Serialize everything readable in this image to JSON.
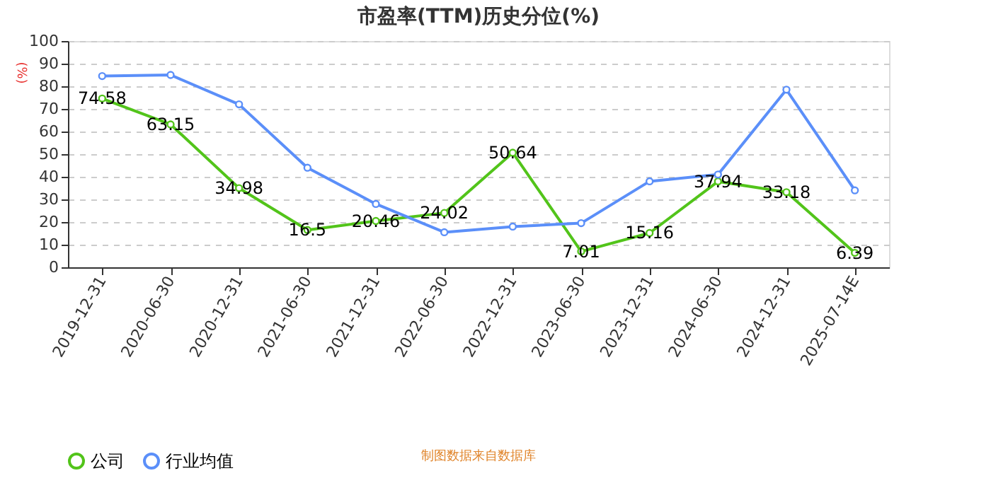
{
  "chart_data": {
    "type": "line",
    "title": "市盈率(TTM)历史分位(%)",
    "ylabel": "(%)",
    "categories": [
      "2019-12-31",
      "2020-06-30",
      "2020-12-31",
      "2021-06-30",
      "2021-12-31",
      "2022-06-30",
      "2022-12-31",
      "2023-06-30",
      "2023-12-31",
      "2024-06-30",
      "2024-12-31",
      "2025-07-14E"
    ],
    "series": [
      {
        "name": "公司",
        "color": "#52c41a",
        "values": [
          74.58,
          63.15,
          34.98,
          16.5,
          20.46,
          24.02,
          50.64,
          7.01,
          15.16,
          37.94,
          33.18,
          6.39
        ],
        "value_labels": [
          "74.58",
          "63.15",
          "34.98",
          "16.5",
          "20.46",
          "24.02",
          "50.64",
          "7.01",
          "15.16",
          "37.94",
          "33.18",
          "6.39"
        ]
      },
      {
        "name": "行业均值",
        "color": "#5b8ff9",
        "values": [
          84.5,
          85,
          72,
          44,
          28,
          15.5,
          18,
          19.5,
          38,
          41,
          78.5,
          34
        ]
      }
    ],
    "ylim": [
      0,
      100
    ],
    "yticks": [
      0,
      10,
      20,
      30,
      40,
      50,
      60,
      70,
      80,
      90,
      100
    ],
    "grid": "y",
    "legend": "bottom",
    "marker": "circle",
    "line_style": "solid",
    "annotations": [
      "制图数据来自数据库"
    ]
  }
}
